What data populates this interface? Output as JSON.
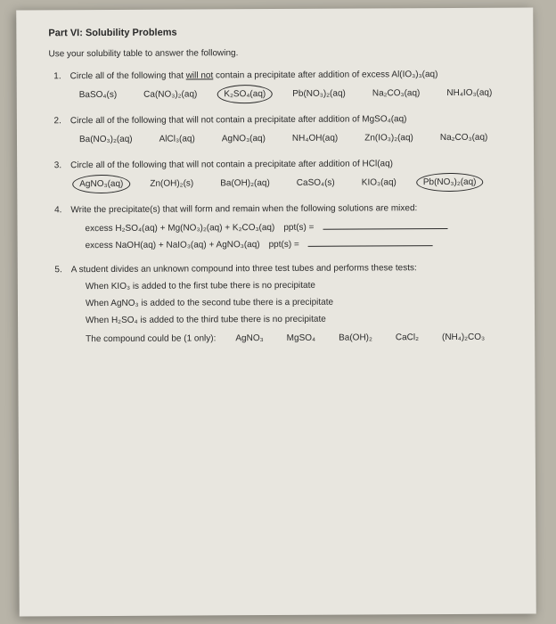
{
  "title": "Part VI: Solubility Problems",
  "intro": "Use your solubility table to answer the following.",
  "q1": {
    "num": "1.",
    "text_pre": "Circle all of the following that ",
    "text_ul": "will not",
    "text_post": " contain a precipitate after addition of excess Al(IO₃)₃(aq)",
    "opts": [
      "BaSO₄(s)",
      "Ca(NO₃)₂(aq)",
      "K₂SO₄(aq)",
      "Pb(NO₃)₂(aq)",
      "Na₂CO₃(aq)",
      "NH₄IO₃(aq)"
    ]
  },
  "q2": {
    "num": "2.",
    "text": "Circle all of the following that will not contain a precipitate after addition of MgSO₄(aq)",
    "opts": [
      "Ba(NO₃)₂(aq)",
      "AlCl₃(aq)",
      "AgNO₃(aq)",
      "NH₄OH(aq)",
      "Zn(IO₃)₂(aq)",
      "Na₂CO₃(aq)"
    ]
  },
  "q3": {
    "num": "3.",
    "text": "Circle all of the following that will not contain a precipitate after addition of HCl(aq)",
    "opts": [
      "AgNO₃(aq)",
      "Zn(OH)₂(s)",
      "Ba(OH)₂(aq)",
      "CaSO₄(s)",
      "KIO₃(aq)",
      "Pb(NO₃)₂(aq)"
    ]
  },
  "q4": {
    "num": "4.",
    "text": "Write the precipitate(s) that will form and remain when the following solutions are mixed:",
    "line1_lhs": "excess H₂SO₄(aq) + Mg(NO₃)₂(aq) + K₂CO₃(aq)",
    "line2_lhs": "excess NaOH(aq) + NaIO₃(aq) + AgNO₃(aq)",
    "eq": "ppt(s) ="
  },
  "q5": {
    "num": "5.",
    "text": "A student divides an unknown compound into three test tubes and performs these tests:",
    "t1": "When KIO₃ is added to the first tube there is no precipitate",
    "t2": "When AgNO₃ is added to the second tube there is a precipitate",
    "t3": "When H₂SO₄ is added to the third tube there is no precipitate",
    "anslabel": "The compound could be (1 only):",
    "ans": [
      "AgNO₃",
      "MgSO₄",
      "Ba(OH)₂",
      "CaCl₂",
      "(NH₄)₂CO₃"
    ]
  }
}
